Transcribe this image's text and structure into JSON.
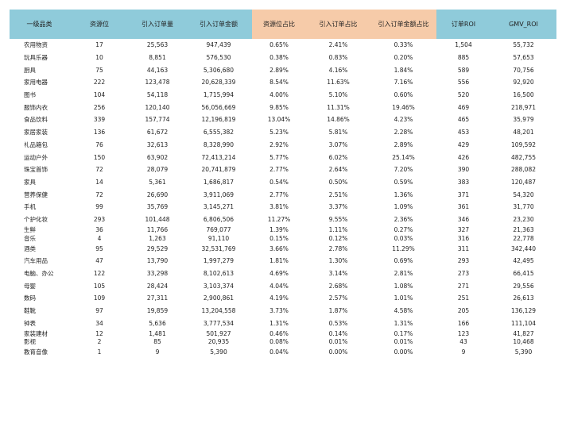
{
  "headers": [
    "一级品类",
    "资源位",
    "引入订单量",
    "引入订单金额",
    "资源位占比",
    "引入订单占比",
    "引入订单金额占比",
    "订单ROI",
    "GMV_ROI"
  ],
  "rows": [
    [
      "农用物资",
      "17",
      "25,563",
      "947,439",
      "0.65%",
      "2.41%",
      "0.33%",
      "1,504",
      "55,732"
    ],
    [
      "玩具乐器",
      "10",
      "8,851",
      "576,530",
      "0.38%",
      "0.83%",
      "0.20%",
      "885",
      "57,653"
    ],
    [
      "厨具",
      "75",
      "44,163",
      "5,306,680",
      "2.89%",
      "4.16%",
      "1.84%",
      "589",
      "70,756"
    ],
    [
      "家用电器",
      "222",
      "123,478",
      "20,628,339",
      "8.54%",
      "11.63%",
      "7.16%",
      "556",
      "92,920"
    ],
    [
      "图书",
      "104",
      "54,118",
      "1,715,994",
      "4.00%",
      "5.10%",
      "0.60%",
      "520",
      "16,500"
    ],
    [
      "服饰内衣",
      "256",
      "120,140",
      "56,056,669",
      "9.85%",
      "11.31%",
      "19.46%",
      "469",
      "218,971"
    ],
    [
      "食品饮料",
      "339",
      "157,774",
      "12,196,819",
      "13.04%",
      "14.86%",
      "4.23%",
      "465",
      "35,979"
    ],
    [
      "家居家装",
      "136",
      "61,672",
      "6,555,382",
      "5.23%",
      "5.81%",
      "2.28%",
      "453",
      "48,201"
    ],
    [
      "礼品箱包",
      "76",
      "32,613",
      "8,328,990",
      "2.92%",
      "3.07%",
      "2.89%",
      "429",
      "109,592"
    ],
    [
      "运动户外",
      "150",
      "63,902",
      "72,413,214",
      "5.77%",
      "6.02%",
      "25.14%",
      "426",
      "482,755"
    ],
    [
      "珠宝首饰",
      "72",
      "28,079",
      "20,741,879",
      "2.77%",
      "2.64%",
      "7.20%",
      "390",
      "288,082"
    ],
    [
      "家具",
      "14",
      "5,361",
      "1,686,817",
      "0.54%",
      "0.50%",
      "0.59%",
      "383",
      "120,487"
    ],
    [
      "营养保健",
      "72",
      "26,690",
      "3,911,069",
      "2.77%",
      "2.51%",
      "1.36%",
      "371",
      "54,320"
    ],
    [
      "手机",
      "99",
      "35,769",
      "3,145,271",
      "3.81%",
      "3.37%",
      "1.09%",
      "361",
      "31,770"
    ],
    [
      "个护化妆",
      "293",
      "101,448",
      "6,806,506",
      "11.27%",
      "9.55%",
      "2.36%",
      "346",
      "23,230"
    ],
    [
      "生鲜",
      "36",
      "11,766",
      "769,077",
      "1.39%",
      "1.11%",
      "0.27%",
      "327",
      "21,363"
    ],
    [
      "音乐",
      "4",
      "1,263",
      "91,110",
      "0.15%",
      "0.12%",
      "0.03%",
      "316",
      "22,778"
    ],
    [
      "酒类",
      "95",
      "29,529",
      "32,531,769",
      "3.66%",
      "2.78%",
      "11.29%",
      "311",
      "342,440"
    ],
    [
      "汽车用品",
      "47",
      "13,790",
      "1,997,279",
      "1.81%",
      "1.30%",
      "0.69%",
      "293",
      "42,495"
    ],
    [
      "电脑、办公",
      "122",
      "33,298",
      "8,102,613",
      "4.69%",
      "3.14%",
      "2.81%",
      "273",
      "66,415"
    ],
    [
      "母婴",
      "105",
      "28,424",
      "3,103,374",
      "4.04%",
      "2.68%",
      "1.08%",
      "271",
      "29,556"
    ],
    [
      "数码",
      "109",
      "27,311",
      "2,900,861",
      "4.19%",
      "2.57%",
      "1.01%",
      "251",
      "26,613"
    ],
    [
      "鞋靴",
      "97",
      "19,859",
      "13,204,558",
      "3.73%",
      "1.87%",
      "4.58%",
      "205",
      "136,129"
    ],
    [
      "钟表",
      "34",
      "5,636",
      "3,777,534",
      "1.31%",
      "0.53%",
      "1.31%",
      "166",
      "111,104"
    ],
    [
      "家装建材",
      "12",
      "1,481",
      "501,927",
      "0.46%",
      "0.14%",
      "0.17%",
      "123",
      "41,827"
    ],
    [
      "影视",
      "2",
      "85",
      "20,935",
      "0.08%",
      "0.01%",
      "0.01%",
      "43",
      "10,468"
    ],
    [
      "教育音像",
      "1",
      "9",
      "5,390",
      "0.04%",
      "0.00%",
      "0.00%",
      "9",
      "5,390"
    ]
  ]
}
